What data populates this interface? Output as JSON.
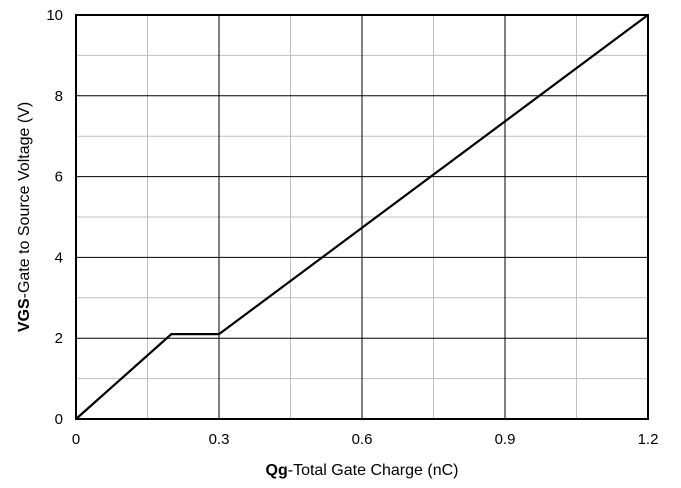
{
  "chart_data": {
    "type": "line",
    "title": "",
    "xlabel_bold": "Qg",
    "xlabel_rest": "-Total Gate Charge (nC)",
    "ylabel_bold": "VGS",
    "ylabel_rest": "-Gate to Source Voltage (V)",
    "xlim": [
      0,
      1.2
    ],
    "ylim": [
      0,
      10
    ],
    "xticks": [
      0,
      0.3,
      0.6,
      0.9,
      1.2
    ],
    "xtick_labels": [
      "0",
      "0.3",
      "0.6",
      "0.9",
      "1.2"
    ],
    "yticks": [
      0,
      2,
      4,
      6,
      8,
      10
    ],
    "ytick_labels": [
      "0",
      "2",
      "4",
      "6",
      "8",
      "10"
    ],
    "x_minor_step": 0.15,
    "y_minor_step": 1,
    "grid": true,
    "series": [
      {
        "x": [
          0,
          0.2,
          0.3,
          1.2
        ],
        "y": [
          0,
          2.1,
          2.1,
          10
        ]
      }
    ],
    "colors": {
      "line": "#000000",
      "major_grid": "#000000",
      "minor_grid": "#bfbfbf",
      "frame": "#000000"
    }
  }
}
